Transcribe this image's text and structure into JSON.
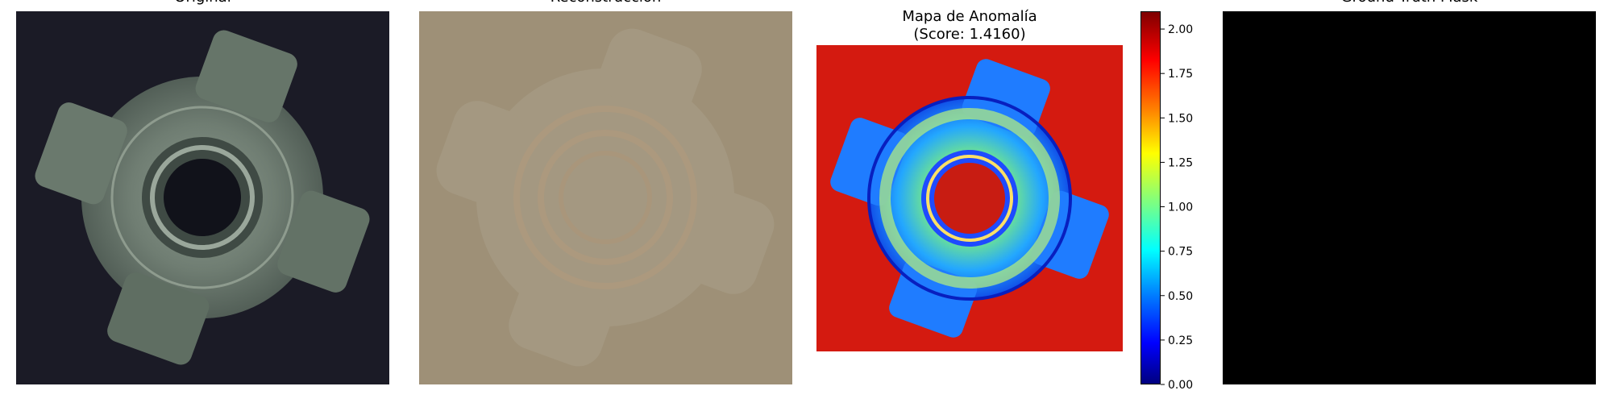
{
  "panels": {
    "original": {
      "title": "Original"
    },
    "reconstruction": {
      "title": "Reconstrucción"
    },
    "anomaly_map": {
      "title_line1": "Mapa de Anomalía",
      "title_line2": "(Score: 1.4160)"
    },
    "ground_truth": {
      "title": "Ground Truth Mask"
    }
  },
  "colorbar": {
    "colormap": "jet",
    "range": [
      0.0,
      2.1
    ],
    "tick_values": [
      0.0,
      0.25,
      0.5,
      0.75,
      1.0,
      1.25,
      1.5,
      1.75,
      2.0
    ],
    "tick_labels": [
      "0.00",
      "0.25",
      "0.50",
      "0.75",
      "1.00",
      "1.25",
      "1.50",
      "1.75",
      "2.00"
    ]
  },
  "colors": {
    "original_background": "#1b1b26",
    "reconstruction_background": "#9e9077",
    "anomaly_background": "#d41a10",
    "ground_truth_background": "#000000"
  }
}
